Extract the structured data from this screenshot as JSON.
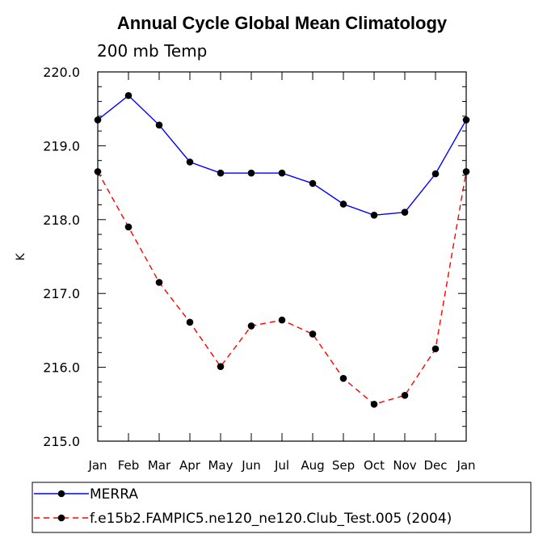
{
  "chart_data": {
    "type": "line",
    "title": "Annual Cycle Global Mean Climatology",
    "subtitle": "200 mb Temp",
    "xlabel": "",
    "ylabel": "K",
    "categories": [
      "Jan",
      "Feb",
      "Mar",
      "Apr",
      "May",
      "Jun",
      "Jul",
      "Aug",
      "Sep",
      "Oct",
      "Nov",
      "Dec",
      "Jan"
    ],
    "ylim": [
      215.0,
      220.0
    ],
    "yticks": [
      215.0,
      216.0,
      217.0,
      218.0,
      219.0,
      220.0
    ],
    "ytick_labels": [
      "215.0",
      "216.0",
      "217.0",
      "218.0",
      "219.0",
      "220.0"
    ],
    "grid": false,
    "legend_position": "bottom",
    "series": [
      {
        "name": "MERRA",
        "color": "#0000ff",
        "dash": "solid",
        "values": [
          219.35,
          219.68,
          219.28,
          218.78,
          218.63,
          218.63,
          218.63,
          218.49,
          218.21,
          218.06,
          218.1,
          218.62,
          219.35
        ]
      },
      {
        "name": "f.e15b2.FAMPIC5.ne120_ne120.Club_Test.005 (2004)",
        "color": "#ff0000",
        "dash": "dashed",
        "values": [
          218.65,
          217.9,
          217.15,
          216.61,
          216.01,
          216.56,
          216.64,
          216.45,
          215.85,
          215.5,
          215.62,
          216.25,
          218.65
        ]
      }
    ]
  }
}
